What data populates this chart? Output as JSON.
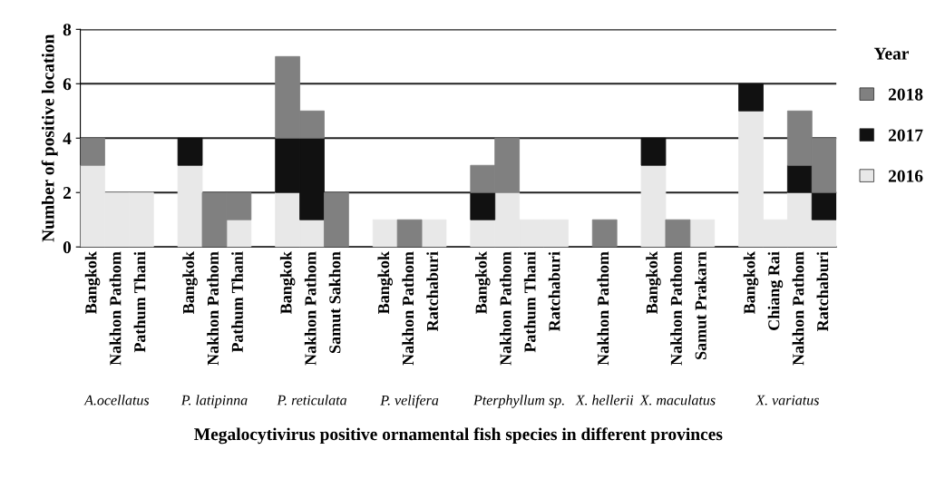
{
  "chart_data": {
    "type": "bar",
    "stacked": true,
    "ylabel": "Number of positive location",
    "xlabel": "Megalocytivirus positive ornamental fish species in different provinces",
    "legend_title": "Year",
    "legend": "right",
    "grid": "y",
    "ylim": [
      0,
      8
    ],
    "yticks": [
      0,
      2,
      4,
      6,
      8
    ],
    "categories": [
      "Bangkok",
      "Nakhon Pathom",
      "Pathum Thani",
      null,
      "Bangkok",
      "Nakhon Pathom",
      "Pathum Thani",
      null,
      "Bangkok",
      "Nakhon Pathom",
      "Samut Sakhon",
      null,
      "Bangkok",
      "Nakhon Pathom",
      "Ratchaburi",
      null,
      "Bangkok",
      "Nakhon Pathom",
      "Pathum Thani",
      "Ratchaburi",
      null,
      "Nakhon Pathom",
      null,
      "Bangkok",
      "Nakhon Pathom",
      "Samut Prakarn",
      null,
      "Bangkok",
      "Chiang Rai",
      "Nakhon Pathom",
      "Ratchaburi"
    ],
    "series": [
      {
        "name": "2016",
        "color": "#e8e8e8",
        "values": [
          3,
          2,
          2,
          null,
          3,
          0,
          1,
          null,
          2,
          1,
          0,
          null,
          1,
          0,
          1,
          null,
          1,
          2,
          1,
          1,
          null,
          0,
          null,
          3,
          0,
          1,
          null,
          5,
          1,
          2,
          1
        ]
      },
      {
        "name": "2017",
        "color": "#111111",
        "values": [
          0,
          0,
          0,
          null,
          1,
          0,
          0,
          null,
          2,
          3,
          0,
          null,
          0,
          0,
          0,
          null,
          1,
          0,
          0,
          0,
          null,
          0,
          null,
          1,
          0,
          0,
          null,
          1,
          0,
          1,
          1
        ]
      },
      {
        "name": "2018",
        "color": "#808080",
        "values": [
          1,
          0,
          0,
          null,
          0,
          2,
          1,
          null,
          3,
          1,
          2,
          null,
          0,
          1,
          0,
          null,
          1,
          2,
          0,
          0,
          null,
          1,
          null,
          0,
          1,
          0,
          null,
          0,
          0,
          2,
          2
        ]
      }
    ],
    "annotations": [
      "A.ocellatus",
      "P. latipinna",
      "P. reticulata",
      "P. velifera",
      "Pterphyllum sp.",
      "X. hellerii",
      "X. maculatus",
      "X. variatus"
    ]
  }
}
